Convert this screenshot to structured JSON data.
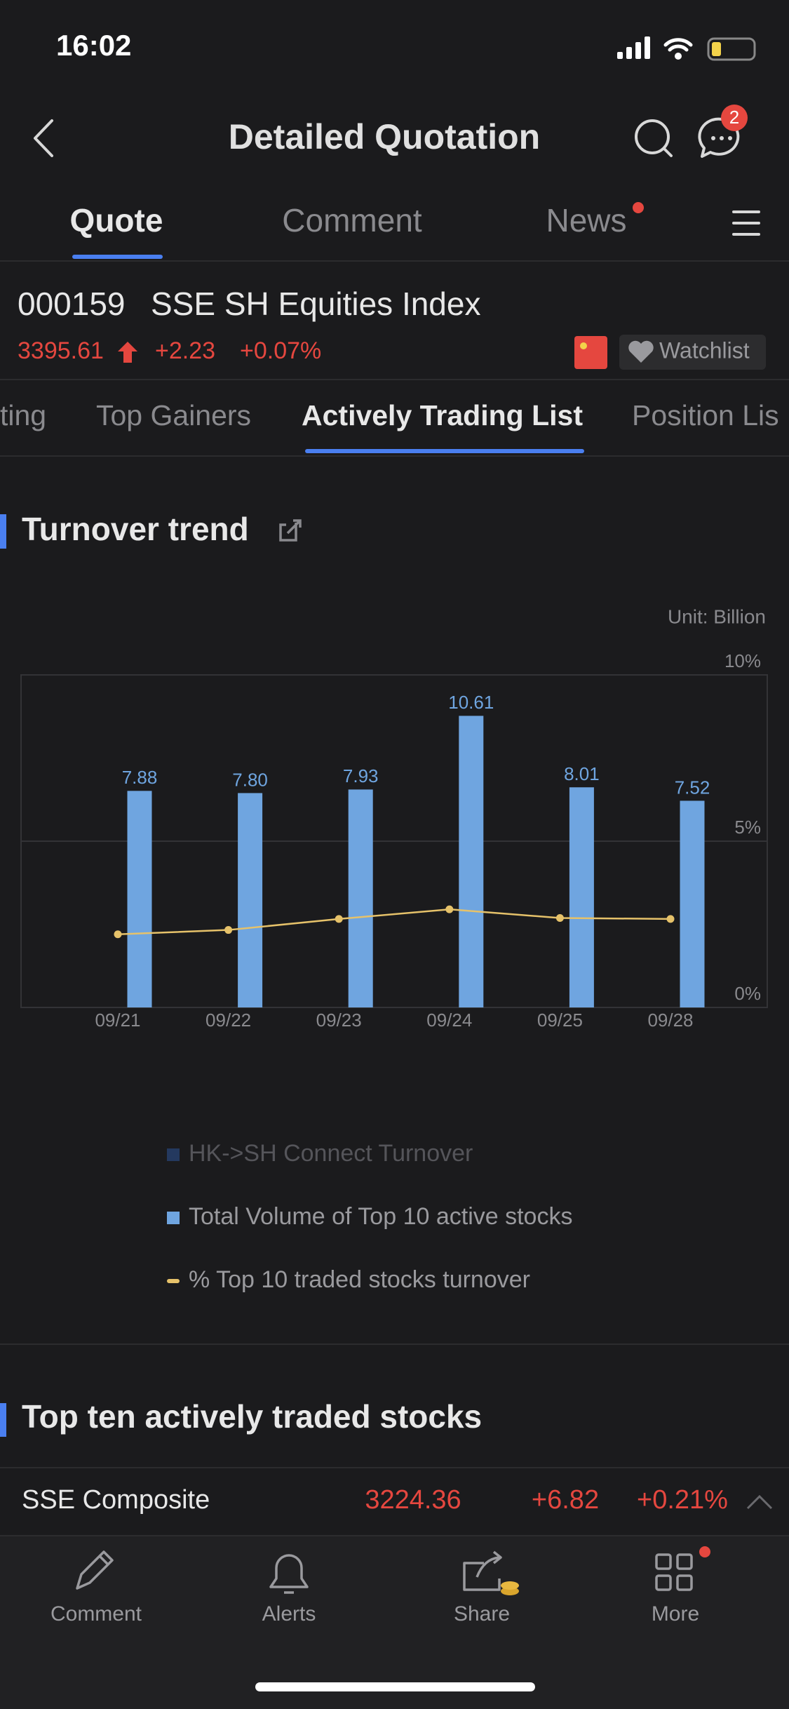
{
  "status_bar": {
    "time": "16:02"
  },
  "header": {
    "title": "Detailed Quotation",
    "badge": "2"
  },
  "tabs": [
    "Quote",
    "Comment",
    "News"
  ],
  "quote": {
    "code": "000159",
    "name": "SSE SH Equities Index",
    "price": "3395.61",
    "change": "+2.23",
    "change_pct": "+0.07%",
    "watchlist": "Watchlist"
  },
  "subtabs": [
    "ting",
    "Top Gainers",
    "Actively Trading List",
    "Position Lis"
  ],
  "chart_data": {
    "type": "bar",
    "title": "Turnover trend",
    "unit_label": "Unit: Billion",
    "categories": [
      "09/21",
      "09/22",
      "09/23",
      "09/24",
      "09/25",
      "09/28"
    ],
    "series": [
      {
        "name": "HK->SH Connect Turnover",
        "color": "#2c4f8c",
        "values": [
          null,
          null,
          null,
          null,
          null,
          null
        ]
      },
      {
        "name": "Total Volume of Top 10 active stocks",
        "color": "#6fa5e0",
        "values": [
          7.88,
          7.8,
          7.93,
          10.61,
          8.01,
          7.52
        ],
        "value_labels": [
          "7.88",
          "7.80",
          "7.93",
          "10.61",
          "8.01",
          "7.52"
        ]
      },
      {
        "name": "% Top 10 traded stocks turnover",
        "color": "#e6c26a",
        "axis": "y2",
        "values": [
          2.2,
          2.33,
          2.66,
          2.95,
          2.69,
          2.66
        ]
      }
    ],
    "ylim": [
      0,
      12.1
    ],
    "y2lim": [
      0,
      10
    ],
    "y2ticks": [
      {
        "value": 0,
        "label": "0%"
      },
      {
        "value": 5,
        "label": "5%"
      },
      {
        "value": 10,
        "label": "10%"
      }
    ],
    "grid": true
  },
  "section2": {
    "title": "Top ten actively traded stocks",
    "row": {
      "name": "SSE Composite",
      "price": "3224.36",
      "change": "+6.82",
      "change_pct": "+0.21%"
    }
  },
  "bottom_nav": [
    "Comment",
    "Alerts",
    "Share",
    "More"
  ]
}
